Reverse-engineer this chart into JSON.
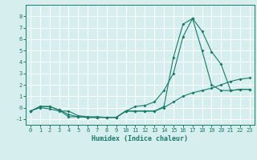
{
  "xlabel": "Humidex (Indice chaleur)",
  "x": [
    0,
    1,
    2,
    3,
    4,
    5,
    6,
    7,
    8,
    9,
    10,
    11,
    12,
    13,
    14,
    15,
    16,
    17,
    18,
    19,
    20,
    21,
    22,
    23
  ],
  "line1": [
    -0.3,
    0.1,
    0.1,
    -0.2,
    -0.8,
    -0.8,
    -0.85,
    -0.85,
    -0.85,
    -0.85,
    -0.3,
    0.1,
    0.2,
    0.5,
    1.5,
    3.0,
    6.2,
    7.8,
    6.7,
    4.9,
    3.8,
    1.5,
    1.6,
    1.6
  ],
  "line2": [
    -0.3,
    0.1,
    0.1,
    -0.2,
    -0.6,
    -0.8,
    -0.85,
    -0.85,
    -0.85,
    -0.85,
    -0.3,
    -0.3,
    -0.3,
    -0.3,
    0.1,
    4.4,
    7.3,
    7.8,
    5.0,
    2.0,
    1.5,
    1.5,
    1.6,
    1.6
  ],
  "line3": [
    -0.3,
    0.0,
    -0.1,
    -0.3,
    -0.3,
    -0.7,
    -0.8,
    -0.8,
    -0.85,
    -0.85,
    -0.3,
    -0.3,
    -0.3,
    -0.3,
    0.0,
    0.5,
    1.0,
    1.3,
    1.5,
    1.7,
    2.0,
    2.3,
    2.5,
    2.6
  ],
  "line_color": "#1a7a6a",
  "bg_color": "#d6eeee",
  "grid_color": "#ffffff",
  "ylim": [
    -1.5,
    9.0
  ],
  "xlim": [
    -0.5,
    23.5
  ],
  "yticks": [
    -1,
    0,
    1,
    2,
    3,
    4,
    5,
    6,
    7,
    8
  ],
  "xticks": [
    0,
    1,
    2,
    3,
    4,
    5,
    6,
    7,
    8,
    9,
    10,
    11,
    12,
    13,
    14,
    15,
    16,
    17,
    18,
    19,
    20,
    21,
    22,
    23
  ],
  "tick_fontsize": 5.0,
  "xlabel_fontsize": 6.0,
  "marker_size": 2.0,
  "line_width": 0.8
}
